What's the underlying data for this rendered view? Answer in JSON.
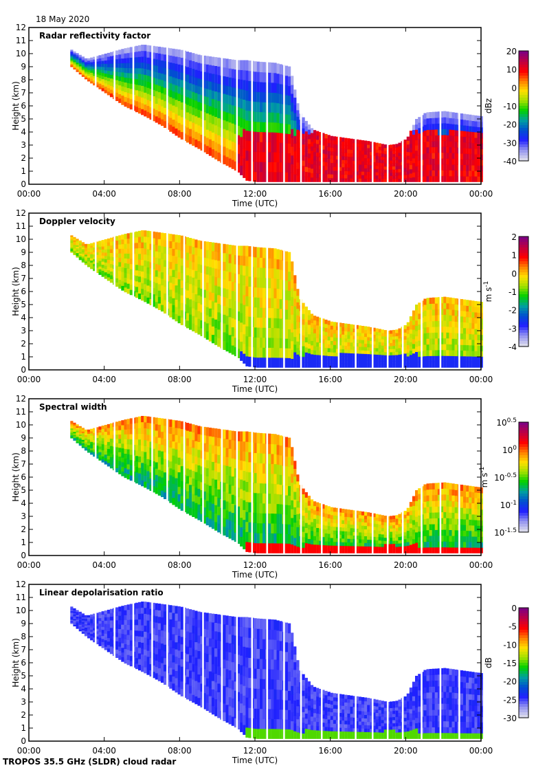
{
  "header": {
    "date": "18 May 2020"
  },
  "footer": {
    "instrument": "TROPOS 35.5 GHz (SLDR) cloud radar"
  },
  "chart_data": [
    {
      "type": "heatmap",
      "title": "Radar reflectivity factor",
      "xlabel": "Time (UTC)",
      "ylabel": "Height (km)",
      "xlim": [
        "00:00",
        "00:00"
      ],
      "x_ticks": [
        "00:00",
        "04:00",
        "08:00",
        "12:00",
        "16:00",
        "20:00",
        "00:00"
      ],
      "ylim": [
        0,
        12
      ],
      "y_ticks": [
        "0",
        "1",
        "2",
        "3",
        "4",
        "5",
        "6",
        "7",
        "8",
        "9",
        "10",
        "11",
        "12"
      ],
      "colorbar": {
        "label": "dBz",
        "range": [
          -40,
          20
        ],
        "ticks": [
          "20",
          "10",
          "0",
          "-10",
          "-20",
          "-30",
          "-40"
        ]
      },
      "palette": "low-high"
    },
    {
      "type": "heatmap",
      "title": "Doppler velocity",
      "xlabel": "Time (UTC)",
      "ylabel": "Height (km)",
      "xlim": [
        "00:00",
        "00:00"
      ],
      "x_ticks": [
        "00:00",
        "04:00",
        "08:00",
        "12:00",
        "16:00",
        "20:00",
        "00:00"
      ],
      "ylim": [
        0,
        12
      ],
      "y_ticks": [
        "0",
        "1",
        "2",
        "3",
        "4",
        "5",
        "6",
        "7",
        "8",
        "9",
        "10",
        "11",
        "12"
      ],
      "colorbar": {
        "label": "m s",
        "label_sup": "-1",
        "range": [
          -4,
          2
        ],
        "ticks": [
          "2",
          "1",
          "0",
          "-1",
          "-2",
          "-3",
          "-4"
        ]
      },
      "palette": "velocity"
    },
    {
      "type": "heatmap",
      "title": "Spectral width",
      "xlabel": "Time (UTC)",
      "ylabel": "Height (km)",
      "xlim": [
        "00:00",
        "00:00"
      ],
      "x_ticks": [
        "00:00",
        "04:00",
        "08:00",
        "12:00",
        "16:00",
        "20:00",
        "00:00"
      ],
      "ylim": [
        0,
        12
      ],
      "y_ticks": [
        "0",
        "1",
        "2",
        "3",
        "4",
        "5",
        "6",
        "7",
        "8",
        "9",
        "10",
        "11",
        "12"
      ],
      "colorbar": {
        "label": "m s",
        "label_sup": "-1",
        "range": [
          -1.5,
          0.5
        ],
        "scale": "log10",
        "ticks": [
          {
            "base": "10",
            "exp": "0.5"
          },
          {
            "base": "10",
            "exp": "0"
          },
          {
            "base": "10",
            "exp": "-0.5"
          },
          {
            "base": "10",
            "exp": "-1"
          },
          {
            "base": "10",
            "exp": "-1.5"
          }
        ]
      },
      "palette": "width"
    },
    {
      "type": "heatmap",
      "title": "Linear depolarisation ratio",
      "xlabel": "Time (UTC)",
      "ylabel": "Height (km)",
      "xlim": [
        "00:00",
        "00:00"
      ],
      "x_ticks": [
        "00:00",
        "04:00",
        "08:00",
        "12:00",
        "16:00",
        "20:00",
        "00:00"
      ],
      "ylim": [
        0,
        12
      ],
      "y_ticks": [
        "0",
        "1",
        "2",
        "3",
        "4",
        "5",
        "6",
        "7",
        "8",
        "9",
        "10",
        "11",
        "12"
      ],
      "colorbar": {
        "label": "dB",
        "range": [
          -30,
          0
        ],
        "ticks": [
          "0",
          "-5",
          "-10",
          "-15",
          "-20",
          "-25",
          "-30"
        ]
      },
      "palette": "ldr"
    }
  ],
  "cloud_boundary": {
    "time_h": [
      2.2,
      3,
      4,
      5,
      6,
      7,
      8,
      9,
      10,
      11,
      11.5,
      12,
      13,
      13.8,
      14.3,
      15,
      16,
      17,
      18,
      19,
      19.5,
      20,
      20.5,
      21,
      22,
      23,
      24
    ],
    "top_km": [
      10.3,
      9.6,
      10,
      10.4,
      10.7,
      10.5,
      10.3,
      9.9,
      9.7,
      9.5,
      9.5,
      9.4,
      9.3,
      9.0,
      5.5,
      4.2,
      3.7,
      3.5,
      3.3,
      3.0,
      3.1,
      3.5,
      5.0,
      5.5,
      5.6,
      5.4,
      5.2
    ],
    "base_km": [
      9.0,
      8.0,
      7.0,
      6.0,
      5.3,
      4.5,
      3.5,
      2.7,
      1.8,
      1.0,
      0.3,
      0.2,
      0.2,
      0.2,
      0.2,
      0.2,
      0.2,
      0.2,
      0.2,
      0.2,
      0.2,
      0.2,
      0.2,
      0.2,
      0.2,
      0.2,
      0.2
    ]
  },
  "data_gaps_h": [
    3.5,
    4.5,
    5.5,
    6.5,
    7.3,
    8.2,
    9.2,
    10.2,
    11.0,
    11.8,
    12.6,
    13.5,
    14.4,
    15.5,
    16.4,
    17.3,
    18.2,
    19.0,
    19.8,
    20.8,
    21.8,
    22.8
  ]
}
